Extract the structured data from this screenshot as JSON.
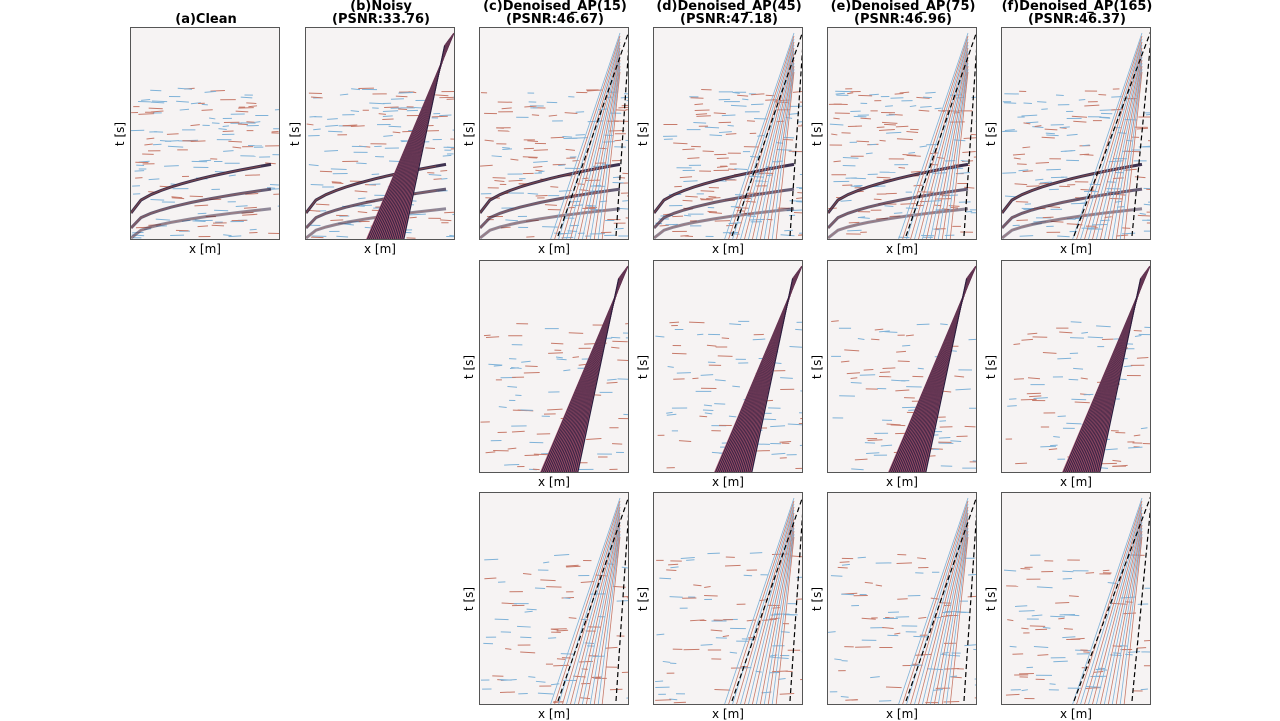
{
  "figure": {
    "columns": [
      {
        "key": "a",
        "title_line1": "(a)Clean",
        "title_line2": ""
      },
      {
        "key": "b",
        "title_line1": "(b)Noisy",
        "title_line2": "(PSNR:33.76)"
      },
      {
        "key": "c",
        "title_line1": "(c)Denoised_AP(15)",
        "title_line2": "(PSNR:46.67)"
      },
      {
        "key": "d",
        "title_line1": "(d)Denoised_AP(45)",
        "title_line2": "(PSNR:47.18)"
      },
      {
        "key": "e",
        "title_line1": "(e)Denoised_AP(75)",
        "title_line2": "(PSNR:46.96)"
      },
      {
        "key": "f",
        "title_line1": "(f)Denoised_AP(165)",
        "title_line2": "(PSNR:46.37)"
      }
    ],
    "xlabel": "x [m]",
    "ylabel": "t [s]",
    "rows": [
      [
        "a",
        "b",
        "c",
        "d",
        "e",
        "f"
      ],
      [
        "c",
        "d",
        "e",
        "f"
      ],
      [
        "c",
        "d",
        "e",
        "f"
      ]
    ]
  }
}
